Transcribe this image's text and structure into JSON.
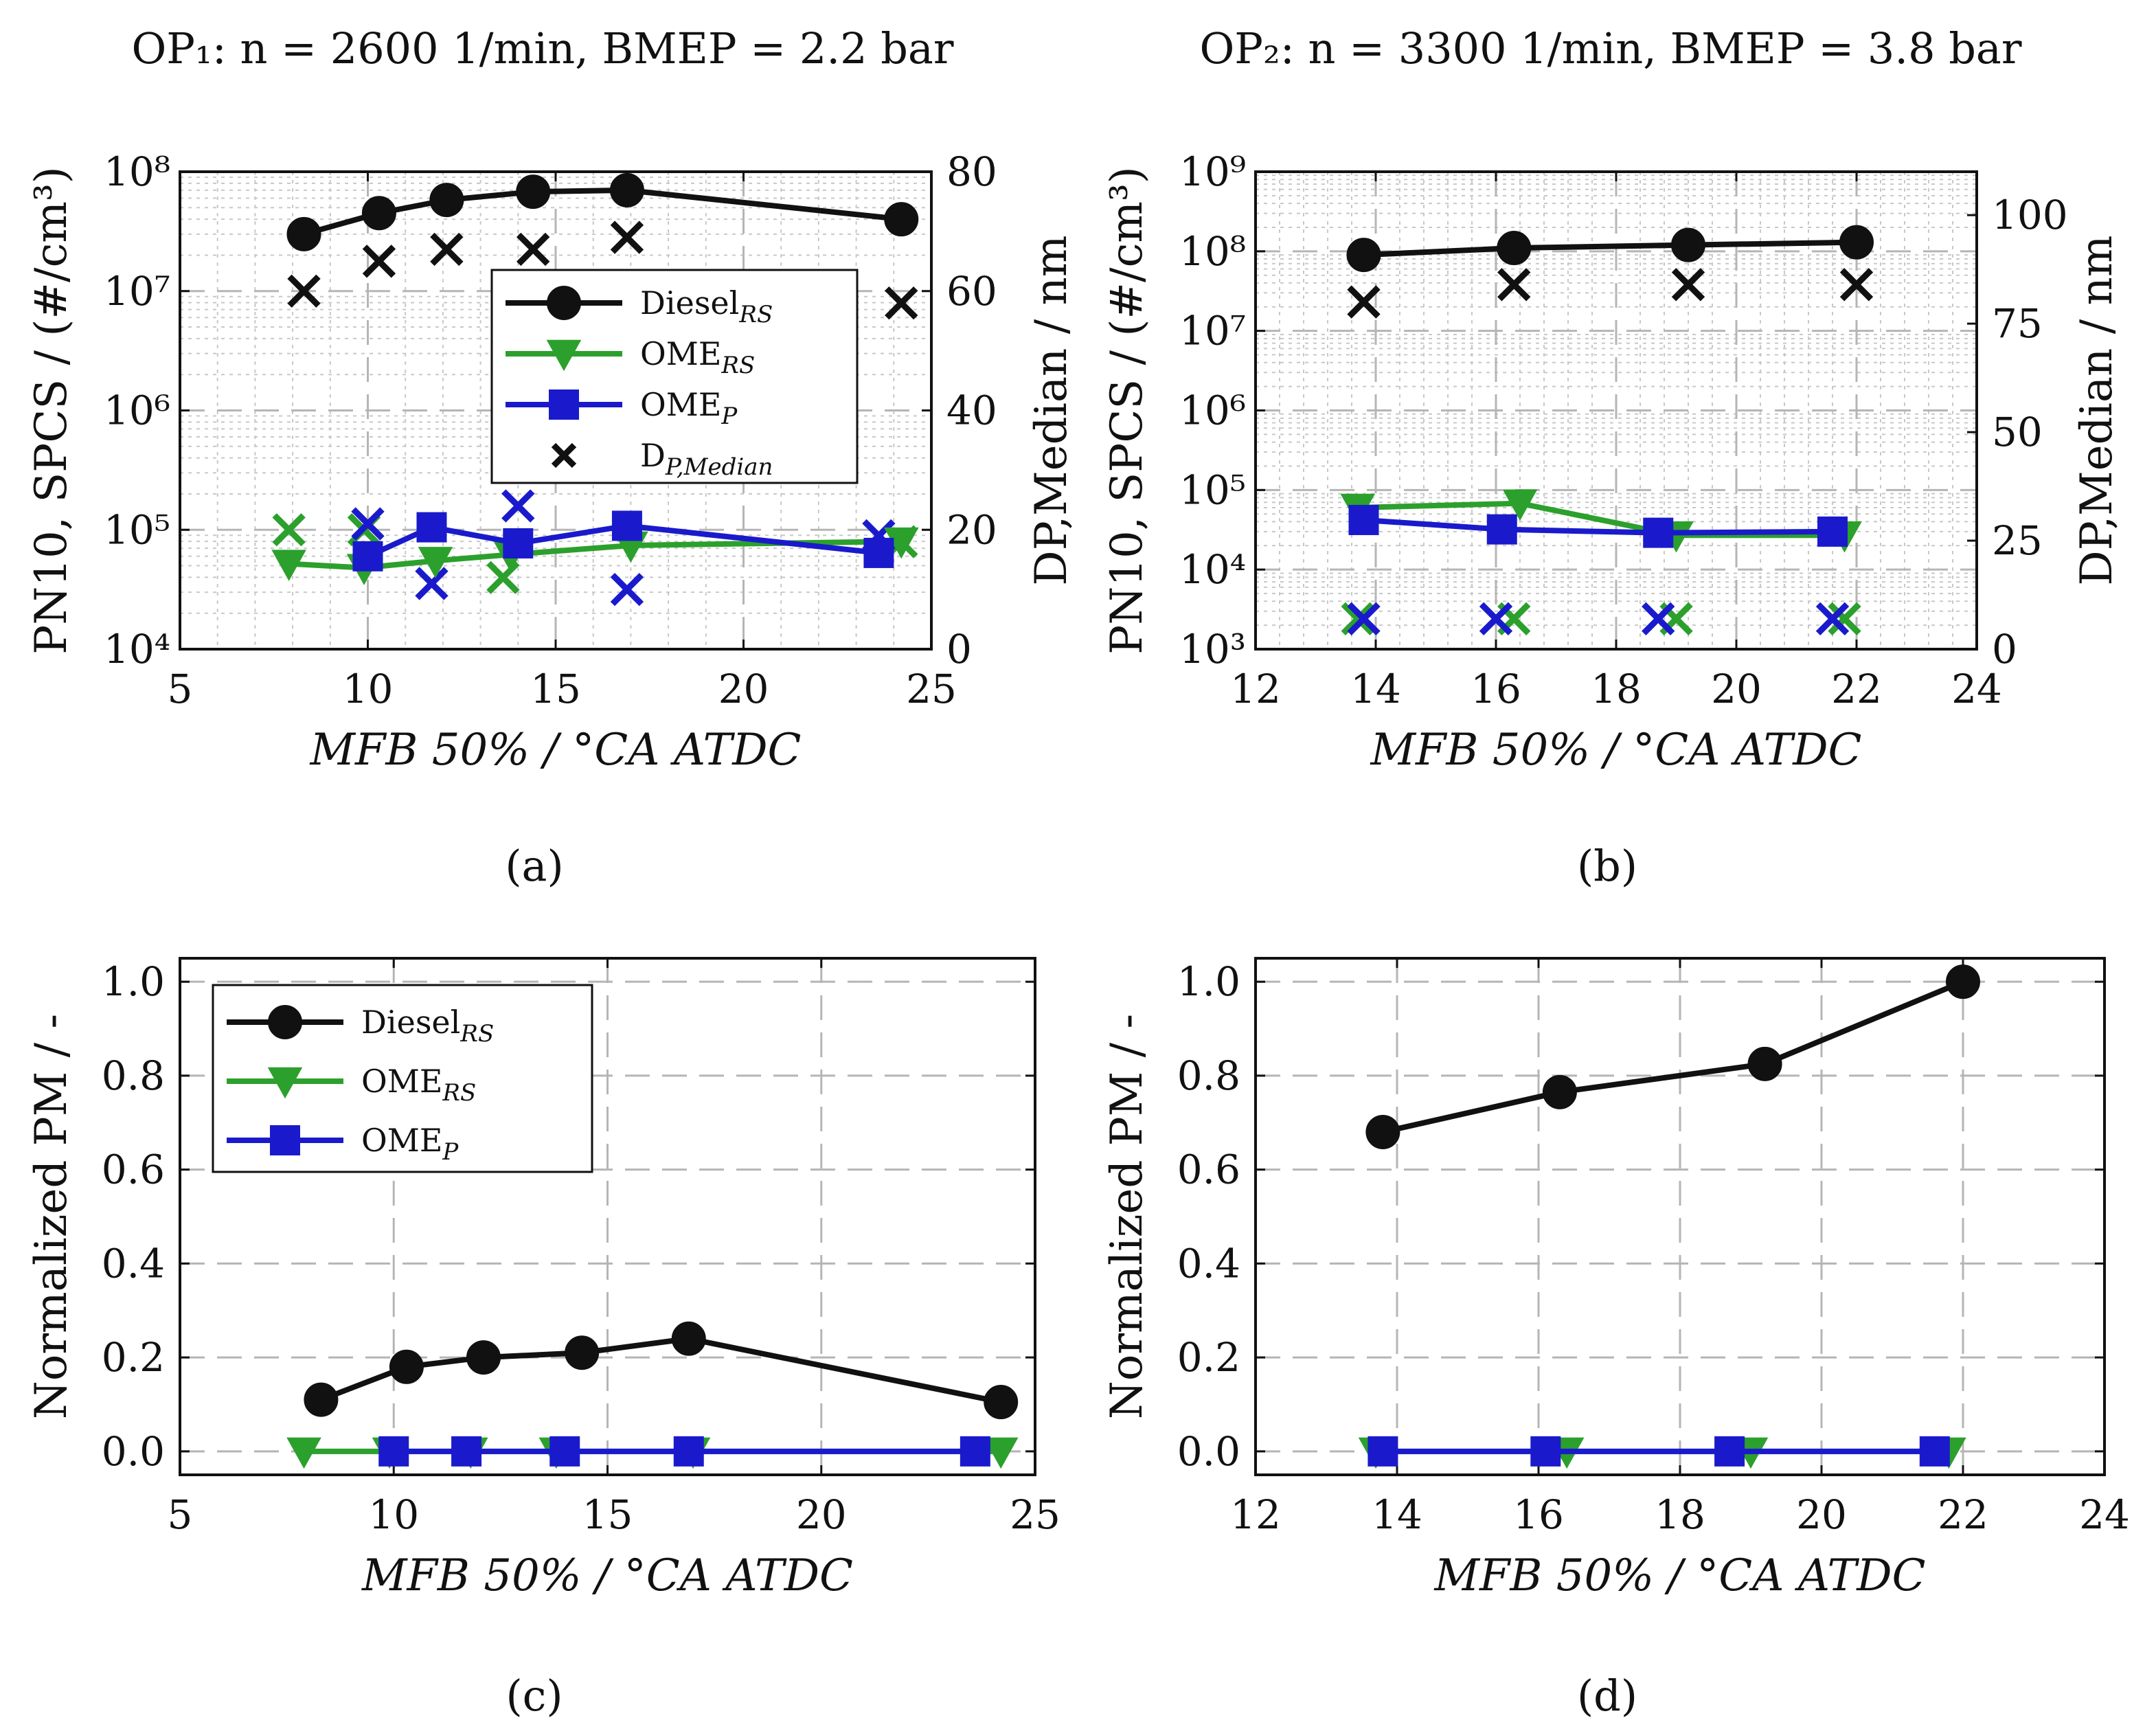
{
  "figure": {
    "title_a": "OP₁: n = 2600 1/min, BMEP = 2.2 bar",
    "title_b": "OP₂: n = 3300 1/min, BMEP = 3.8 bar",
    "caption_a": "(a)",
    "caption_b": "(b)",
    "caption_c": "(c)",
    "caption_d": "(d)"
  },
  "chart_data": [
    {
      "id": "a",
      "type": "line",
      "title": "OP₁: n = 2600 1/min, BMEP = 2.2 bar",
      "xlabel": "MFB 50% / °CA ATDC",
      "ylabel": "PN10, SPCS / (#/cm³)",
      "y2label": "DP,Median / nm",
      "xlim": [
        5,
        25
      ],
      "ylim_log10": [
        4,
        8
      ],
      "y2lim": [
        0,
        80
      ],
      "x_ticks": [
        "5",
        "10",
        "15",
        "20",
        "25"
      ],
      "y_ticks": [
        "10⁴",
        "10⁵",
        "10⁶",
        "10⁷",
        "10⁸"
      ],
      "y2_ticks": [
        "0",
        "20",
        "40",
        "60",
        "80"
      ],
      "legend": [
        "Diesel_RS",
        "OME_RS",
        "OME_P",
        "D_P,Median"
      ],
      "series": [
        {
          "name": "Diesel_RS",
          "color": "#111111",
          "marker": "circle",
          "x": [
            8.3,
            10.3,
            12.1,
            14.4,
            16.9,
            24.2
          ],
          "y": [
            30000000,
            45000000,
            58000000,
            68000000,
            70000000,
            40000000
          ]
        },
        {
          "name": "OME_RS",
          "color": "#2ca02c",
          "marker": "triangle-down",
          "x": [
            7.9,
            9.9,
            11.8,
            13.8,
            17.0,
            24.2
          ],
          "y": [
            52000,
            48000,
            55000,
            62000,
            74000,
            80000
          ]
        },
        {
          "name": "OME_P",
          "color": "#1a1acc",
          "marker": "square",
          "x": [
            10.0,
            11.7,
            14.0,
            16.9,
            23.6
          ],
          "y": [
            60000,
            105000,
            77000,
            108000,
            64000
          ]
        }
      ],
      "median_diameter": [
        {
          "name": "Diesel_RS",
          "color": "#111111",
          "x": [
            8.3,
            10.3,
            12.1,
            14.4,
            16.9,
            24.2
          ],
          "y2": [
            60,
            65,
            67,
            67,
            69,
            58
          ]
        },
        {
          "name": "OME_RS",
          "color": "#2ca02c",
          "x": [
            7.9,
            9.9,
            13.6,
            24.2
          ],
          "y2": [
            20,
            20,
            12,
            18
          ]
        },
        {
          "name": "OME_P",
          "color": "#1a1acc",
          "x": [
            10.0,
            11.7,
            14.0,
            16.9,
            23.6
          ],
          "y2": [
            21,
            11,
            24,
            10,
            19
          ]
        }
      ]
    },
    {
      "id": "b",
      "type": "line",
      "title": "OP₂: n = 3300 1/min, BMEP = 3.8 bar",
      "xlabel": "MFB 50% / °CA ATDC",
      "ylabel": "PN10, SPCS / (#/cm³)",
      "y2label": "DP,Median / nm",
      "xlim": [
        12,
        24
      ],
      "ylim_log10": [
        3,
        9
      ],
      "y2lim": [
        0,
        110
      ],
      "x_ticks": [
        "12",
        "14",
        "16",
        "18",
        "20",
        "22",
        "24"
      ],
      "y_ticks": [
        "10³",
        "10⁴",
        "10⁵",
        "10⁶",
        "10⁷",
        "10⁸",
        "10⁹"
      ],
      "y2_ticks": [
        "0",
        "25",
        "50",
        "75",
        "100"
      ],
      "series": [
        {
          "name": "Diesel_RS",
          "color": "#111111",
          "marker": "circle",
          "x": [
            13.8,
            16.3,
            19.2,
            22.0
          ],
          "y": [
            90000000,
            110000000,
            120000000,
            130000000
          ]
        },
        {
          "name": "OME_RS",
          "color": "#2ca02c",
          "marker": "triangle-down",
          "x": [
            13.7,
            16.4,
            19.0,
            21.8
          ],
          "y": [
            60000,
            68000,
            27000,
            27000
          ]
        },
        {
          "name": "OME_P",
          "color": "#1a1acc",
          "marker": "square",
          "x": [
            13.8,
            16.1,
            18.7,
            21.6
          ],
          "y": [
            42000,
            32000,
            29000,
            30000
          ]
        }
      ],
      "median_diameter": [
        {
          "name": "Diesel_RS",
          "color": "#111111",
          "x": [
            13.8,
            16.3,
            19.2,
            22.0
          ],
          "y2": [
            80,
            84,
            84,
            84
          ]
        },
        {
          "name": "OME_RS",
          "color": "#2ca02c",
          "x": [
            13.7,
            16.3,
            19.0,
            21.8
          ],
          "y2": [
            7,
            7,
            7,
            7
          ]
        },
        {
          "name": "OME_P",
          "color": "#1a1acc",
          "x": [
            13.8,
            16.0,
            18.7,
            21.6
          ],
          "y2": [
            7,
            7,
            7,
            7
          ]
        }
      ]
    },
    {
      "id": "c",
      "type": "line",
      "xlabel": "MFB 50% / °CA ATDC",
      "ylabel": "Normalized PM / -",
      "xlim": [
        5,
        25
      ],
      "ylim": [
        -0.05,
        1.05
      ],
      "x_ticks": [
        "5",
        "10",
        "15",
        "20",
        "25"
      ],
      "y_ticks": [
        "0.0",
        "0.2",
        "0.4",
        "0.6",
        "0.8",
        "1.0"
      ],
      "legend": [
        "Diesel_RS",
        "OME_RS",
        "OME_P"
      ],
      "series": [
        {
          "name": "Diesel_RS",
          "color": "#111111",
          "marker": "circle",
          "x": [
            8.3,
            10.3,
            12.1,
            14.4,
            16.9,
            24.2
          ],
          "y": [
            0.11,
            0.18,
            0.2,
            0.21,
            0.24,
            0.105
          ]
        },
        {
          "name": "OME_RS",
          "color": "#2ca02c",
          "marker": "triangle-down",
          "x": [
            7.9,
            9.9,
            11.8,
            13.8,
            17.0,
            24.2
          ],
          "y": [
            0,
            0,
            0,
            0,
            0,
            0
          ]
        },
        {
          "name": "OME_P",
          "color": "#1a1acc",
          "marker": "square",
          "x": [
            10.0,
            11.7,
            14.0,
            16.9,
            23.6
          ],
          "y": [
            0,
            0,
            0,
            0,
            0
          ]
        }
      ]
    },
    {
      "id": "d",
      "type": "line",
      "xlabel": "MFB 50% / °CA ATDC",
      "ylabel": "Normalized PM / -",
      "xlim": [
        12,
        24
      ],
      "ylim": [
        -0.05,
        1.05
      ],
      "x_ticks": [
        "12",
        "14",
        "16",
        "18",
        "20",
        "22",
        "24"
      ],
      "y_ticks": [
        "0.0",
        "0.2",
        "0.4",
        "0.6",
        "0.8",
        "1.0"
      ],
      "series": [
        {
          "name": "Diesel_RS",
          "color": "#111111",
          "marker": "circle",
          "x": [
            13.8,
            16.3,
            19.2,
            22.0
          ],
          "y": [
            0.68,
            0.765,
            0.825,
            1.0
          ]
        },
        {
          "name": "OME_RS",
          "color": "#2ca02c",
          "marker": "triangle-down",
          "x": [
            13.7,
            16.4,
            19.0,
            21.8
          ],
          "y": [
            0,
            0,
            0,
            0
          ]
        },
        {
          "name": "OME_P",
          "color": "#1a1acc",
          "marker": "square",
          "x": [
            13.8,
            16.1,
            18.7,
            21.6
          ],
          "y": [
            0,
            0,
            0,
            0
          ]
        }
      ]
    }
  ]
}
